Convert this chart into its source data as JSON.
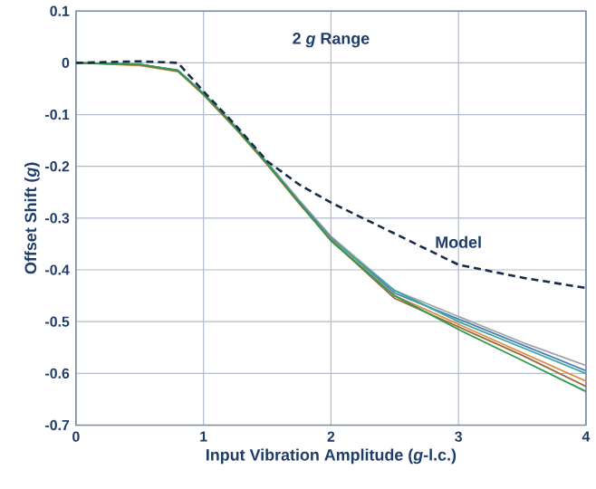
{
  "chart_data": {
    "type": "line",
    "title": "2 *g* Range",
    "xlabel": "Input Vibration Amplitude (*g*-l.c.)",
    "ylabel": "Offset Shift (*g*)",
    "x": [
      0,
      0.5,
      0.8,
      1,
      1.25,
      1.5,
      1.75,
      2,
      2.5,
      3,
      3.5,
      4
    ],
    "series": [
      {
        "color": "#a0a4aa",
        "values": [
          0,
          -0.003,
          -0.014,
          -0.058,
          -0.122,
          -0.192,
          -0.265,
          -0.335,
          -0.44,
          -0.49,
          -0.54,
          -0.585
        ]
      },
      {
        "color": "#4a7fb5",
        "values": [
          0,
          -0.003,
          -0.015,
          -0.06,
          -0.124,
          -0.194,
          -0.268,
          -0.338,
          -0.445,
          -0.495,
          -0.545,
          -0.595
        ]
      },
      {
        "color": "#3aa6a0",
        "values": [
          0,
          -0.003,
          -0.015,
          -0.06,
          -0.125,
          -0.195,
          -0.27,
          -0.34,
          -0.44,
          -0.5,
          -0.55,
          -0.6
        ]
      },
      {
        "color": "#e08a3c",
        "values": [
          0,
          -0.005,
          -0.017,
          -0.062,
          -0.127,
          -0.197,
          -0.272,
          -0.342,
          -0.45,
          -0.505,
          -0.56,
          -0.615
        ]
      },
      {
        "color": "#9a6a45",
        "values": [
          0,
          -0.004,
          -0.016,
          -0.061,
          -0.126,
          -0.196,
          -0.271,
          -0.343,
          -0.455,
          -0.51,
          -0.565,
          -0.625
        ]
      },
      {
        "color": "#2e9a4e",
        "values": [
          0,
          -0.003,
          -0.015,
          -0.06,
          -0.125,
          -0.195,
          -0.27,
          -0.344,
          -0.45,
          -0.515,
          -0.575,
          -0.635
        ]
      },
      {
        "name": "Model",
        "color": "#1a2a4a",
        "line_style": "dashed",
        "values": [
          0,
          0.003,
          0,
          -0.055,
          -0.12,
          -0.19,
          -0.235,
          -0.27,
          -0.33,
          -0.39,
          -0.415,
          -0.435
        ]
      }
    ],
    "xlim": [
      0,
      4
    ],
    "ylim": [
      -0.7,
      0.1
    ],
    "xticks": [
      0,
      1,
      2,
      3,
      4
    ],
    "yticks": [
      0.1,
      0,
      -0.1,
      -0.2,
      -0.3,
      -0.4,
      -0.5,
      -0.6,
      -0.7
    ],
    "grid": true,
    "marker": "none"
  }
}
